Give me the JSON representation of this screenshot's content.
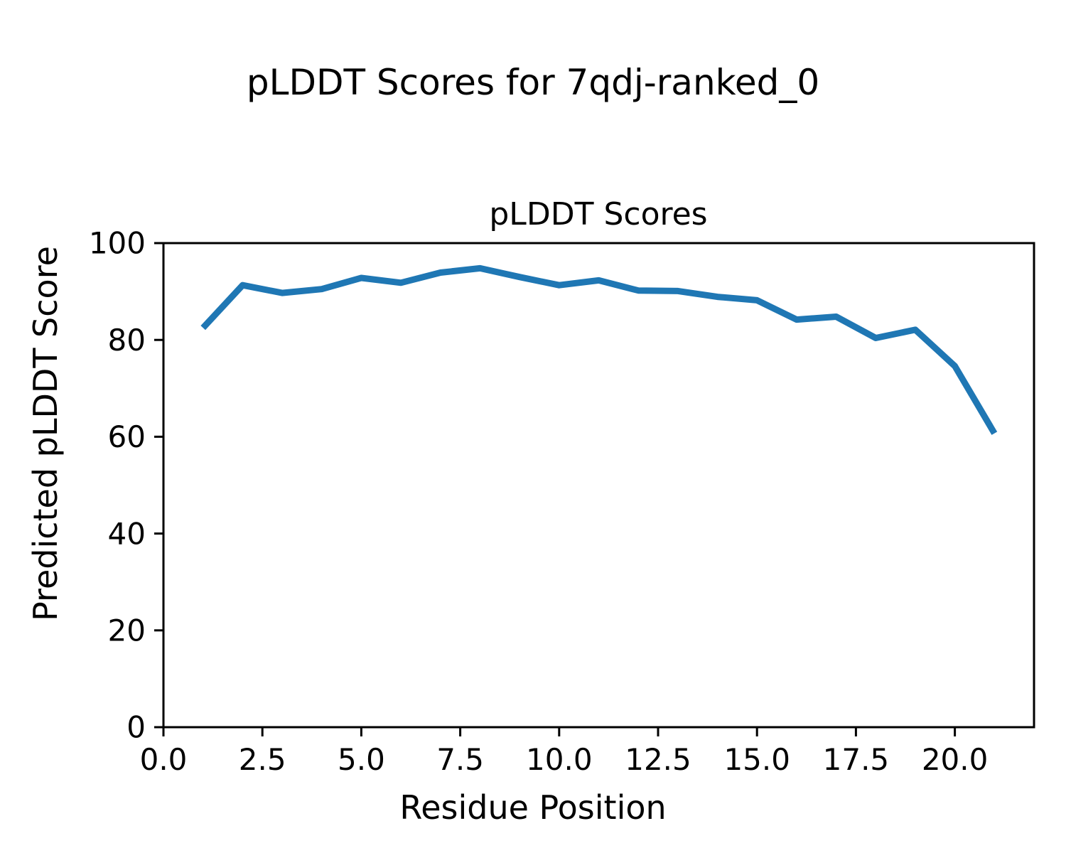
{
  "figure": {
    "suptitle": "pLDDT Scores for 7qdj-ranked_0",
    "background_color": "#ffffff"
  },
  "chart_data": {
    "type": "line",
    "title": "pLDDT Scores",
    "xlabel": "Residue Position",
    "ylabel": "Predicted pLDDT Score",
    "x": [
      1,
      2,
      3,
      4,
      5,
      6,
      7,
      8,
      9,
      10,
      11,
      12,
      13,
      14,
      15,
      16,
      17,
      18,
      19,
      20,
      21
    ],
    "y": [
      82.5,
      91.3,
      89.7,
      90.5,
      92.8,
      91.8,
      93.9,
      94.8,
      93.0,
      91.3,
      92.3,
      90.2,
      90.1,
      88.9,
      88.2,
      84.2,
      84.8,
      80.4,
      82.1,
      74.6,
      60.7
    ],
    "xlim": [
      0,
      22
    ],
    "ylim": [
      0,
      100
    ],
    "xticks": {
      "values": [
        0,
        2.5,
        5,
        7.5,
        10,
        12.5,
        15,
        17.5,
        20
      ],
      "labels": [
        "0.0",
        "2.5",
        "5.0",
        "7.5",
        "10.0",
        "12.5",
        "15.0",
        "17.5",
        "20.0"
      ]
    },
    "yticks": {
      "values": [
        0,
        20,
        40,
        60,
        80,
        100
      ],
      "labels": [
        "0",
        "20",
        "40",
        "60",
        "80",
        "100"
      ]
    },
    "series_color": "#1f77b4",
    "grid": false,
    "legend": "none"
  }
}
